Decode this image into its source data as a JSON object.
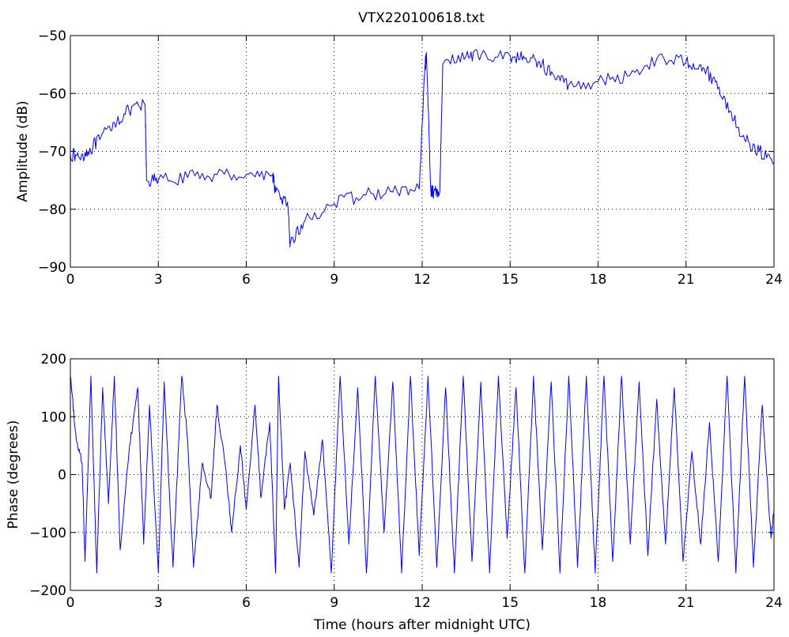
{
  "figure": {
    "title": "VTX220100618.txt",
    "background": "#ffffff",
    "line_color": "#0000ff"
  },
  "chart_data": [
    {
      "type": "line",
      "title": "VTX220100618.txt",
      "xlabel": "",
      "ylabel": "Amplitude (dB)",
      "xlim": [
        0,
        24
      ],
      "ylim": [
        -90,
        -50
      ],
      "xticks": [
        0,
        3,
        6,
        9,
        12,
        15,
        18,
        21,
        24
      ],
      "yticks": [
        -90,
        -80,
        -70,
        -60,
        -50
      ],
      "grid": true,
      "series": [
        {
          "x": [
            0,
            0.3,
            0.6,
            1.0,
            1.5,
            2.0,
            2.55,
            2.6,
            3.0,
            4.0,
            5.0,
            6.0,
            6.9,
            7.0,
            7.4,
            7.5,
            8.0,
            9.0,
            10.0,
            11.0,
            11.9,
            12.1,
            12.15,
            12.3,
            12.4,
            12.6,
            12.7,
            13.5,
            14.0,
            15.0,
            15.5,
            16.0,
            16.5,
            17.0,
            18.0,
            19.0,
            20.0,
            21.0,
            21.5,
            22.0,
            22.5,
            23.0,
            23.5,
            24.0
          ],
          "y": [
            -70.5,
            -71,
            -70,
            -68,
            -65,
            -63,
            -62,
            -75,
            -75,
            -74.5,
            -74,
            -74,
            -74,
            -77,
            -79,
            -86,
            -82,
            -79,
            -77.5,
            -77,
            -76.5,
            -55,
            -54,
            -77,
            -77,
            -77,
            -55,
            -53.5,
            -53.5,
            -53.5,
            -54,
            -54.5,
            -57,
            -58.5,
            -58,
            -57,
            -54,
            -54.5,
            -55,
            -58,
            -63,
            -68,
            -70,
            -72
          ]
        }
      ]
    },
    {
      "type": "line",
      "title": "",
      "xlabel": "Time (hours after midnight UTC)",
      "ylabel": "Phase (degrees)",
      "xlim": [
        0,
        24
      ],
      "ylim": [
        -200,
        200
      ],
      "xticks": [
        0,
        3,
        6,
        9,
        12,
        15,
        18,
        21,
        24
      ],
      "yticks": [
        -200,
        -100,
        0,
        100,
        200
      ],
      "grid": true,
      "series": [
        {
          "x": [
            0,
            0.2,
            0.4,
            0.5,
            0.7,
            0.9,
            1.1,
            1.3,
            1.5,
            1.7,
            2.0,
            2.3,
            2.5,
            2.7,
            3.0,
            3.2,
            3.5,
            3.8,
            4.0,
            4.2,
            4.5,
            4.8,
            5.0,
            5.3,
            5.5,
            5.8,
            6.0,
            6.3,
            6.5,
            6.8,
            7.0,
            7.1,
            7.3,
            7.5,
            7.8,
            8.0,
            8.3,
            8.6,
            8.9,
            9.2,
            9.5,
            9.8,
            10.1,
            10.4,
            10.7,
            11.0,
            11.3,
            11.6,
            11.9,
            12.2,
            12.5,
            12.8,
            13.1,
            13.4,
            13.7,
            14.0,
            14.3,
            14.6,
            14.9,
            15.2,
            15.5,
            15.8,
            16.1,
            16.4,
            16.7,
            17.0,
            17.3,
            17.6,
            17.9,
            18.2,
            18.5,
            18.8,
            19.1,
            19.4,
            19.7,
            20.0,
            20.3,
            20.6,
            20.9,
            21.2,
            21.5,
            21.8,
            22.1,
            22.4,
            22.7,
            23.0,
            23.3,
            23.6,
            23.9,
            24.0
          ],
          "y": [
            170,
            60,
            20,
            -150,
            170,
            -170,
            150,
            -50,
            170,
            -130,
            40,
            150,
            -120,
            120,
            -170,
            160,
            -160,
            170,
            60,
            -160,
            20,
            -40,
            120,
            10,
            -100,
            50,
            -60,
            120,
            -40,
            90,
            -170,
            170,
            -60,
            20,
            -160,
            40,
            -70,
            60,
            -170,
            170,
            -120,
            150,
            -170,
            170,
            -100,
            160,
            -170,
            170,
            -140,
            170,
            -160,
            150,
            -170,
            170,
            -150,
            160,
            -170,
            170,
            -110,
            150,
            -170,
            170,
            -130,
            160,
            -170,
            170,
            -160,
            170,
            -170,
            170,
            -150,
            170,
            -120,
            160,
            -140,
            130,
            -120,
            150,
            -150,
            40,
            -120,
            90,
            -150,
            170,
            -170,
            170,
            -160,
            120,
            -110,
            -60
          ]
        }
      ]
    }
  ]
}
